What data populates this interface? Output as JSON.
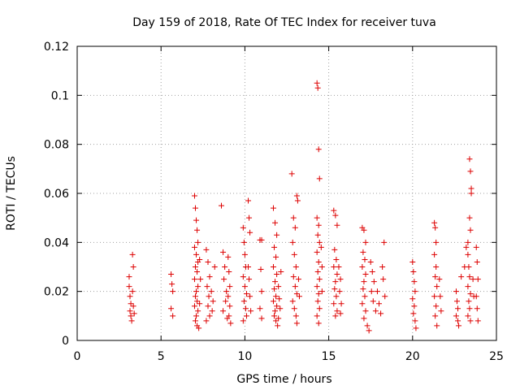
{
  "chart_data": {
    "type": "scatter",
    "title": "Day 159 of 2018, Rate Of TEC Index for receiver tuva",
    "xlabel": "GPS time / hours",
    "ylabel": "ROTI / TECUs",
    "xlim": [
      0,
      25
    ],
    "ylim": [
      0,
      0.12
    ],
    "xticks": [
      0,
      5,
      10,
      15,
      20,
      25
    ],
    "xtick_labels": [
      "0",
      "5",
      "10",
      "15",
      "20",
      "25"
    ],
    "yticks": [
      0,
      0.02,
      0.04,
      0.06,
      0.08,
      0.1,
      0.12
    ],
    "ytick_labels": [
      "0",
      "0.02",
      "0.04",
      "0.06",
      "0.08",
      "0.1",
      "0.12"
    ],
    "grid": true,
    "marker": "plus",
    "color": "#dd0000",
    "points": [
      [
        3.1,
        0.026
      ],
      [
        3.1,
        0.022
      ],
      [
        3.15,
        0.018
      ],
      [
        3.2,
        0.015
      ],
      [
        3.15,
        0.012
      ],
      [
        3.2,
        0.01
      ],
      [
        3.25,
        0.008
      ],
      [
        3.3,
        0.035
      ],
      [
        3.35,
        0.03
      ],
      [
        3.3,
        0.02
      ],
      [
        3.35,
        0.014
      ],
      [
        3.4,
        0.011
      ],
      [
        5.6,
        0.027
      ],
      [
        5.65,
        0.023
      ],
      [
        5.7,
        0.02
      ],
      [
        5.6,
        0.013
      ],
      [
        5.7,
        0.01
      ],
      [
        7.0,
        0.059
      ],
      [
        7.05,
        0.054
      ],
      [
        7.1,
        0.049
      ],
      [
        7.15,
        0.045
      ],
      [
        7.2,
        0.04
      ],
      [
        7.0,
        0.038
      ],
      [
        7.1,
        0.035
      ],
      [
        7.2,
        0.032
      ],
      [
        7.05,
        0.03
      ],
      [
        7.15,
        0.028
      ],
      [
        7.0,
        0.025
      ],
      [
        7.2,
        0.022
      ],
      [
        7.1,
        0.02
      ],
      [
        7.05,
        0.018
      ],
      [
        7.15,
        0.016
      ],
      [
        7.0,
        0.014
      ],
      [
        7.2,
        0.012
      ],
      [
        7.1,
        0.01
      ],
      [
        7.05,
        0.008
      ],
      [
        7.15,
        0.006
      ],
      [
        7.25,
        0.005
      ],
      [
        7.3,
        0.015
      ],
      [
        7.35,
        0.025
      ],
      [
        7.3,
        0.033
      ],
      [
        7.7,
        0.037
      ],
      [
        7.8,
        0.032
      ],
      [
        7.9,
        0.026
      ],
      [
        7.75,
        0.022
      ],
      [
        7.85,
        0.018
      ],
      [
        7.8,
        0.014
      ],
      [
        7.9,
        0.01
      ],
      [
        7.7,
        0.008
      ],
      [
        8.0,
        0.02
      ],
      [
        8.1,
        0.016
      ],
      [
        8.05,
        0.012
      ],
      [
        8.2,
        0.03
      ],
      [
        8.6,
        0.055
      ],
      [
        8.7,
        0.036
      ],
      [
        8.8,
        0.03
      ],
      [
        8.75,
        0.025
      ],
      [
        8.9,
        0.02
      ],
      [
        8.85,
        0.016
      ],
      [
        8.7,
        0.012
      ],
      [
        8.95,
        0.009
      ],
      [
        9.0,
        0.034
      ],
      [
        9.05,
        0.028
      ],
      [
        9.1,
        0.022
      ],
      [
        9.0,
        0.018
      ],
      [
        9.1,
        0.014
      ],
      [
        9.05,
        0.01
      ],
      [
        9.15,
        0.007
      ],
      [
        9.9,
        0.046
      ],
      [
        9.95,
        0.04
      ],
      [
        10.0,
        0.035
      ],
      [
        10.05,
        0.03
      ],
      [
        9.9,
        0.026
      ],
      [
        10.0,
        0.022
      ],
      [
        10.1,
        0.019
      ],
      [
        9.95,
        0.016
      ],
      [
        10.05,
        0.013
      ],
      [
        10.1,
        0.01
      ],
      [
        9.9,
        0.008
      ],
      [
        10.2,
        0.057
      ],
      [
        10.25,
        0.05
      ],
      [
        10.3,
        0.044
      ],
      [
        10.2,
        0.03
      ],
      [
        10.25,
        0.025
      ],
      [
        10.3,
        0.018
      ],
      [
        10.35,
        0.012
      ],
      [
        10.9,
        0.041
      ],
      [
        11.0,
        0.041
      ],
      [
        10.95,
        0.029
      ],
      [
        11.0,
        0.02
      ],
      [
        10.9,
        0.013
      ],
      [
        11.0,
        0.009
      ],
      [
        11.7,
        0.054
      ],
      [
        11.8,
        0.048
      ],
      [
        11.9,
        0.043
      ],
      [
        11.75,
        0.038
      ],
      [
        11.85,
        0.034
      ],
      [
        11.7,
        0.03
      ],
      [
        11.9,
        0.027
      ],
      [
        11.8,
        0.024
      ],
      [
        11.75,
        0.021
      ],
      [
        11.85,
        0.018
      ],
      [
        11.7,
        0.016
      ],
      [
        11.9,
        0.014
      ],
      [
        11.8,
        0.012
      ],
      [
        11.75,
        0.01
      ],
      [
        11.85,
        0.008
      ],
      [
        11.95,
        0.006
      ],
      [
        12.0,
        0.022
      ],
      [
        12.05,
        0.017
      ],
      [
        12.1,
        0.013
      ],
      [
        12.0,
        0.009
      ],
      [
        12.15,
        0.028
      ],
      [
        12.8,
        0.068
      ],
      [
        12.9,
        0.05
      ],
      [
        13.0,
        0.046
      ],
      [
        13.1,
        0.059
      ],
      [
        13.15,
        0.057
      ],
      [
        12.85,
        0.04
      ],
      [
        12.95,
        0.035
      ],
      [
        13.05,
        0.03
      ],
      [
        12.9,
        0.026
      ],
      [
        13.0,
        0.022
      ],
      [
        13.1,
        0.019
      ],
      [
        12.85,
        0.016
      ],
      [
        12.95,
        0.013
      ],
      [
        13.05,
        0.01
      ],
      [
        13.1,
        0.007
      ],
      [
        13.2,
        0.025
      ],
      [
        13.25,
        0.018
      ],
      [
        14.3,
        0.105
      ],
      [
        14.35,
        0.103
      ],
      [
        14.4,
        0.078
      ],
      [
        14.45,
        0.066
      ],
      [
        14.3,
        0.05
      ],
      [
        14.4,
        0.047
      ],
      [
        14.35,
        0.043
      ],
      [
        14.45,
        0.04
      ],
      [
        14.3,
        0.036
      ],
      [
        14.4,
        0.032
      ],
      [
        14.35,
        0.028
      ],
      [
        14.45,
        0.025
      ],
      [
        14.3,
        0.022
      ],
      [
        14.4,
        0.019
      ],
      [
        14.35,
        0.016
      ],
      [
        14.45,
        0.013
      ],
      [
        14.3,
        0.01
      ],
      [
        14.4,
        0.007
      ],
      [
        14.55,
        0.038
      ],
      [
        14.6,
        0.03
      ],
      [
        14.6,
        0.02
      ],
      [
        15.3,
        0.053
      ],
      [
        15.4,
        0.051
      ],
      [
        15.5,
        0.047
      ],
      [
        15.35,
        0.037
      ],
      [
        15.45,
        0.033
      ],
      [
        15.3,
        0.03
      ],
      [
        15.5,
        0.027
      ],
      [
        15.4,
        0.024
      ],
      [
        15.35,
        0.021
      ],
      [
        15.45,
        0.018
      ],
      [
        15.3,
        0.015
      ],
      [
        15.5,
        0.012
      ],
      [
        15.4,
        0.01
      ],
      [
        15.6,
        0.03
      ],
      [
        15.7,
        0.025
      ],
      [
        15.65,
        0.02
      ],
      [
        15.75,
        0.015
      ],
      [
        15.7,
        0.011
      ],
      [
        17.0,
        0.046
      ],
      [
        17.1,
        0.045
      ],
      [
        17.2,
        0.04
      ],
      [
        17.05,
        0.036
      ],
      [
        17.15,
        0.033
      ],
      [
        17.0,
        0.03
      ],
      [
        17.2,
        0.027
      ],
      [
        17.1,
        0.024
      ],
      [
        17.05,
        0.021
      ],
      [
        17.15,
        0.018
      ],
      [
        17.0,
        0.015
      ],
      [
        17.2,
        0.012
      ],
      [
        17.1,
        0.009
      ],
      [
        17.3,
        0.006
      ],
      [
        17.4,
        0.004
      ],
      [
        17.5,
        0.032
      ],
      [
        17.6,
        0.028
      ],
      [
        17.7,
        0.024
      ],
      [
        17.55,
        0.02
      ],
      [
        17.65,
        0.016
      ],
      [
        17.8,
        0.012
      ],
      [
        17.9,
        0.02
      ],
      [
        18.0,
        0.015
      ],
      [
        18.1,
        0.011
      ],
      [
        18.2,
        0.03
      ],
      [
        18.3,
        0.04
      ],
      [
        18.25,
        0.025
      ],
      [
        18.35,
        0.018
      ],
      [
        20.0,
        0.032
      ],
      [
        20.05,
        0.028
      ],
      [
        20.1,
        0.024
      ],
      [
        20.15,
        0.02
      ],
      [
        20.0,
        0.017
      ],
      [
        20.1,
        0.014
      ],
      [
        20.05,
        0.011
      ],
      [
        20.15,
        0.008
      ],
      [
        20.2,
        0.005
      ],
      [
        21.3,
        0.048
      ],
      [
        21.35,
        0.046
      ],
      [
        21.4,
        0.04
      ],
      [
        21.3,
        0.035
      ],
      [
        21.4,
        0.03
      ],
      [
        21.35,
        0.026
      ],
      [
        21.45,
        0.022
      ],
      [
        21.3,
        0.018
      ],
      [
        21.4,
        0.014
      ],
      [
        21.35,
        0.01
      ],
      [
        21.45,
        0.006
      ],
      [
        21.6,
        0.025
      ],
      [
        21.65,
        0.018
      ],
      [
        21.7,
        0.012
      ],
      [
        22.6,
        0.02
      ],
      [
        22.65,
        0.016
      ],
      [
        22.7,
        0.013
      ],
      [
        22.6,
        0.01
      ],
      [
        22.7,
        0.008
      ],
      [
        22.75,
        0.006
      ],
      [
        22.9,
        0.026
      ],
      [
        23.1,
        0.03
      ],
      [
        23.2,
        0.038
      ],
      [
        23.3,
        0.04
      ],
      [
        23.4,
        0.074
      ],
      [
        23.45,
        0.069
      ],
      [
        23.5,
        0.062
      ],
      [
        23.5,
        0.06
      ],
      [
        23.4,
        0.05
      ],
      [
        23.45,
        0.045
      ],
      [
        23.3,
        0.035
      ],
      [
        23.35,
        0.03
      ],
      [
        23.4,
        0.026
      ],
      [
        23.3,
        0.022
      ],
      [
        23.45,
        0.019
      ],
      [
        23.35,
        0.016
      ],
      [
        23.4,
        0.013
      ],
      [
        23.3,
        0.01
      ],
      [
        23.45,
        0.008
      ],
      [
        23.6,
        0.025
      ],
      [
        23.65,
        0.018
      ],
      [
        23.8,
        0.038
      ],
      [
        23.85,
        0.032
      ],
      [
        23.9,
        0.025
      ],
      [
        23.8,
        0.018
      ],
      [
        23.85,
        0.013
      ],
      [
        23.9,
        0.008
      ]
    ]
  }
}
